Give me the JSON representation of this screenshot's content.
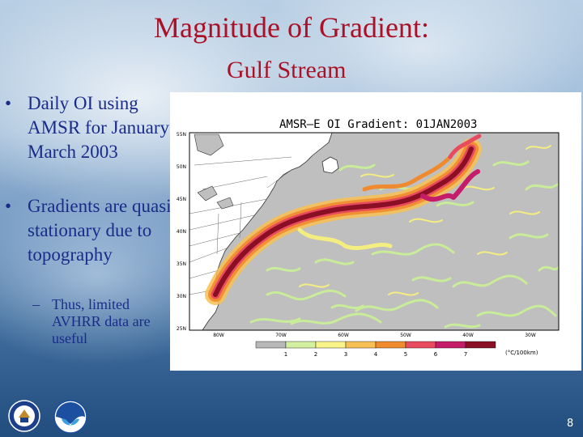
{
  "slide": {
    "title": "Magnitude of Gradient:",
    "subtitle": "Gulf Stream",
    "bullets": [
      {
        "marker": "•",
        "text": "Daily OI using AMSR for January - March 2003"
      },
      {
        "marker": "•",
        "text": "Gradients are quasi stationary due to topography"
      }
    ],
    "sub_bullet": {
      "marker": "–",
      "text": "Thus, limited AVHRR data are useful"
    },
    "page_number": "8"
  },
  "map": {
    "title": "AMSR—E OI Gradient: 01JAN2003",
    "lat_labels": [
      "55N",
      "50N",
      "45N",
      "40N",
      "35N",
      "30N",
      "25N"
    ],
    "lon_labels": [
      "80W",
      "70W",
      "60W",
      "50W",
      "40W",
      "30W"
    ],
    "colorbar_ticks": [
      "1",
      "2",
      "3",
      "4",
      "5",
      "6",
      "7"
    ],
    "colorbar_units": "(°C/100km)",
    "colorbar_colors": [
      "#b8b8b8",
      "#d2f0a0",
      "#f8f48a",
      "#f7c054",
      "#f08a2e",
      "#e84a5e",
      "#c51c6a",
      "#8a0e24"
    ],
    "land_color": "#ffffff",
    "ocean_color": "#bfbfbf"
  },
  "logos": [
    {
      "icon": "doc-seal-icon"
    },
    {
      "icon": "noaa-logo-icon"
    }
  ]
}
